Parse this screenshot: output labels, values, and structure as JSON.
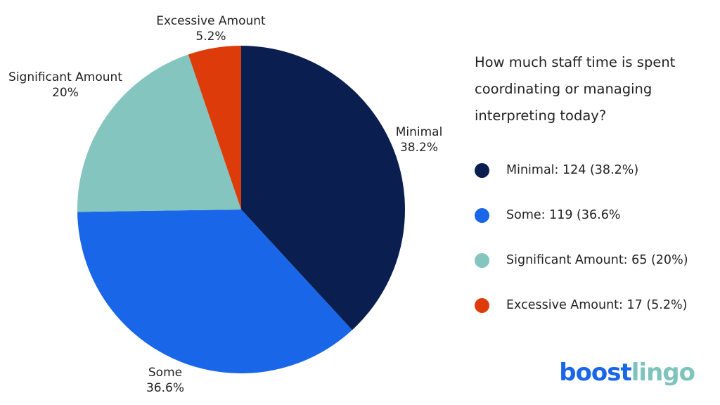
{
  "chart_data": {
    "type": "pie",
    "title": "How much staff time is spent coordinating or managing interpreting today?",
    "slices": [
      {
        "name": "Minimal",
        "count": 124,
        "percent": 38.2,
        "percent_label": "38.2%",
        "color": "#0a1f4f",
        "legend_text": "Minimal: 124 (38.2%)"
      },
      {
        "name": "Some",
        "count": 119,
        "percent": 36.6,
        "percent_label": "36.6%",
        "color": "#1a66e8",
        "legend_text": "Some: 119 (36.6%"
      },
      {
        "name": "Significant Amount",
        "count": 65,
        "percent": 20,
        "percent_label": "20%",
        "color": "#85c5bf",
        "legend_text": "Significant Amount: 65 (20%)"
      },
      {
        "name": "Excessive Amount",
        "count": 17,
        "percent": 5.2,
        "percent_label": "5.2%",
        "color": "#dd3c0a",
        "legend_text": "Excessive Amount: 17 (5.2%)"
      }
    ],
    "legend_position": "right"
  },
  "brand": {
    "part1": "boost",
    "part2": "lingo"
  }
}
